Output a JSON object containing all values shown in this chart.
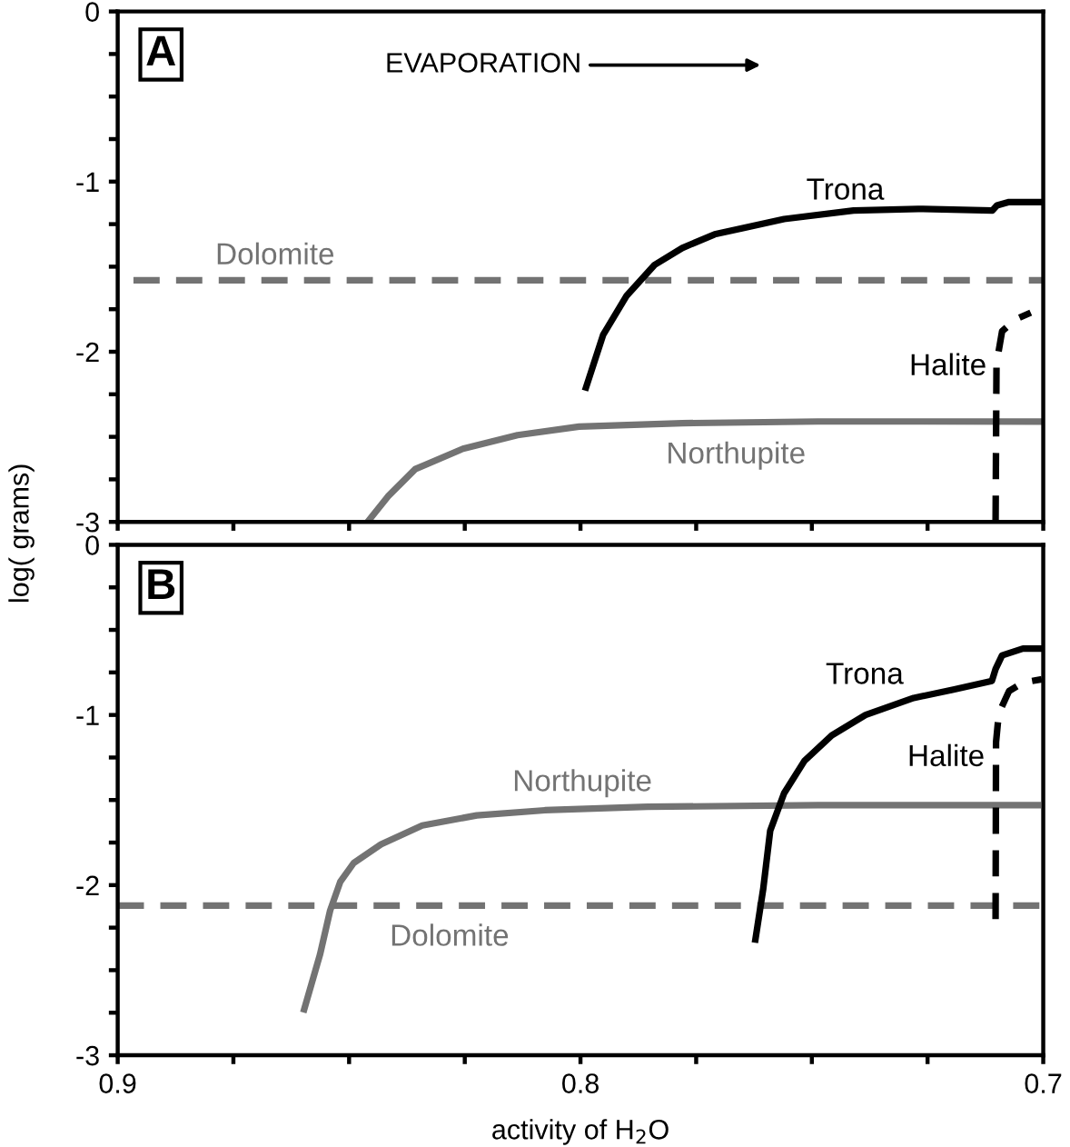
{
  "chart_data": [
    {
      "type": "line",
      "title": "A",
      "ylabel": "log( grams)",
      "xlim": [
        0.9,
        0.7
      ],
      "ylim": [
        -3,
        0
      ],
      "tick_labels": "y",
      "xticks": [
        {
          "value": 0.9,
          "label": null
        },
        {
          "value": 0.875,
          "label": null
        },
        {
          "value": 0.85,
          "label": null
        },
        {
          "value": 0.825,
          "label": null
        },
        {
          "value": 0.8,
          "label": null
        },
        {
          "value": 0.775,
          "label": null
        },
        {
          "value": 0.75,
          "label": null
        },
        {
          "value": 0.725,
          "label": null
        },
        {
          "value": 0.7,
          "label": null
        }
      ],
      "yticks": [
        {
          "value": -3,
          "label": "-3"
        },
        {
          "value": -2.75,
          "label": null
        },
        {
          "value": -2.5,
          "label": null
        },
        {
          "value": -2.25,
          "label": null
        },
        {
          "value": -2,
          "label": "-2"
        },
        {
          "value": -1.75,
          "label": null
        },
        {
          "value": -1.5,
          "label": null
        },
        {
          "value": -1.25,
          "label": null
        },
        {
          "value": -1,
          "label": "-1"
        },
        {
          "value": -0.75,
          "label": null
        },
        {
          "value": -0.5,
          "label": null
        },
        {
          "value": -0.25,
          "label": null
        },
        {
          "value": 0,
          "label": "0"
        }
      ],
      "series": [
        {
          "name": "Dolomite",
          "color": "#737373",
          "line_style": "dashed",
          "x": [
            0.8966,
            0.7
          ],
          "values": [
            -1.58,
            -1.58
          ]
        },
        {
          "name": "Northupite",
          "color": "#737373",
          "line_style": "solid",
          "x": [
            0.846,
            0.8416,
            0.8357,
            0.8254,
            0.8136,
            0.8003,
            0.778,
            0.7487,
            0.7
          ],
          "values": [
            -3.0,
            -2.85,
            -2.69,
            -2.57,
            -2.49,
            -2.44,
            -2.42,
            -2.41,
            -2.41
          ]
        },
        {
          "name": "Trona",
          "color": "#000000",
          "line_style": "solid",
          "x": [
            0.7988,
            0.7951,
            0.79,
            0.784,
            0.778,
            0.771,
            0.756,
            0.741,
            0.727,
            0.711,
            0.71,
            0.7074,
            0.7003
          ],
          "values": [
            -2.21,
            -1.9,
            -1.67,
            -1.49,
            -1.39,
            -1.31,
            -1.22,
            -1.17,
            -1.16,
            -1.17,
            -1.14,
            -1.12,
            -1.12
          ]
        },
        {
          "name": "Halite",
          "color": "#000000",
          "line_style": "dashed",
          "x": [
            0.7103,
            0.7101,
            0.7089,
            0.706,
            0.7027
          ],
          "values": [
            -3.0,
            -2.07,
            -1.88,
            -1.81,
            -1.77
          ]
        }
      ],
      "annotations": [
        "EVAPORATION"
      ]
    },
    {
      "type": "line",
      "title": "B",
      "xlabel": "activity of H$_{2}$O",
      "xlim": [
        0.9,
        0.7
      ],
      "ylim": [
        -3,
        0
      ],
      "xticks": [
        {
          "value": 0.9,
          "label": "0.9"
        },
        {
          "value": 0.875,
          "label": null
        },
        {
          "value": 0.85,
          "label": null
        },
        {
          "value": 0.825,
          "label": null
        },
        {
          "value": 0.8,
          "label": "0.8"
        },
        {
          "value": 0.775,
          "label": null
        },
        {
          "value": 0.75,
          "label": null
        },
        {
          "value": 0.725,
          "label": null
        },
        {
          "value": 0.7,
          "label": "0.7"
        }
      ],
      "yticks": [
        {
          "value": -3,
          "label": "-3"
        },
        {
          "value": -2.75,
          "label": null
        },
        {
          "value": -2.5,
          "label": null
        },
        {
          "value": -2.25,
          "label": null
        },
        {
          "value": -2,
          "label": "-2"
        },
        {
          "value": -1.75,
          "label": null
        },
        {
          "value": -1.5,
          "label": null
        },
        {
          "value": -1.25,
          "label": null
        },
        {
          "value": -1,
          "label": "-1"
        },
        {
          "value": -0.75,
          "label": null
        },
        {
          "value": -0.5,
          "label": null
        },
        {
          "value": -0.25,
          "label": null
        },
        {
          "value": 0,
          "label": "0"
        }
      ],
      "series": [
        {
          "name": "Dolomite",
          "color": "#737373",
          "line_style": "dashed",
          "x": [
            0.9,
            0.7
          ],
          "values": [
            -2.12,
            -2.12
          ]
        },
        {
          "name": "Northupite",
          "color": "#737373",
          "line_style": "solid",
          "x": [
            0.8597,
            0.8563,
            0.8541,
            0.8519,
            0.849,
            0.8431,
            0.8342,
            0.8224,
            0.8077,
            0.7855,
            0.7487,
            0.7012
          ],
          "values": [
            -2.73,
            -2.41,
            -2.15,
            -1.98,
            -1.87,
            -1.76,
            -1.65,
            -1.59,
            -1.56,
            -1.54,
            -1.53,
            -1.53
          ]
        },
        {
          "name": "Trona",
          "color": "#000000",
          "line_style": "solid",
          "x": [
            0.7622,
            0.7605,
            0.759,
            0.756,
            0.7516,
            0.7457,
            0.7384,
            0.728,
            0.7192,
            0.7111,
            0.7103,
            0.7089,
            0.7044,
            0.7003
          ],
          "values": [
            -2.32,
            -2.02,
            -1.68,
            -1.46,
            -1.27,
            -1.12,
            -1.0,
            -0.9,
            -0.85,
            -0.8,
            -0.73,
            -0.65,
            -0.61,
            -0.61
          ]
        },
        {
          "name": "Halite",
          "color": "#000000",
          "line_style": "dashed",
          "x": [
            0.7103,
            0.7102,
            0.7096,
            0.7074,
            0.7044,
            0.7003
          ],
          "values": [
            -2.2,
            -1.16,
            -0.99,
            -0.86,
            -0.81,
            -0.79
          ]
        }
      ]
    }
  ]
}
